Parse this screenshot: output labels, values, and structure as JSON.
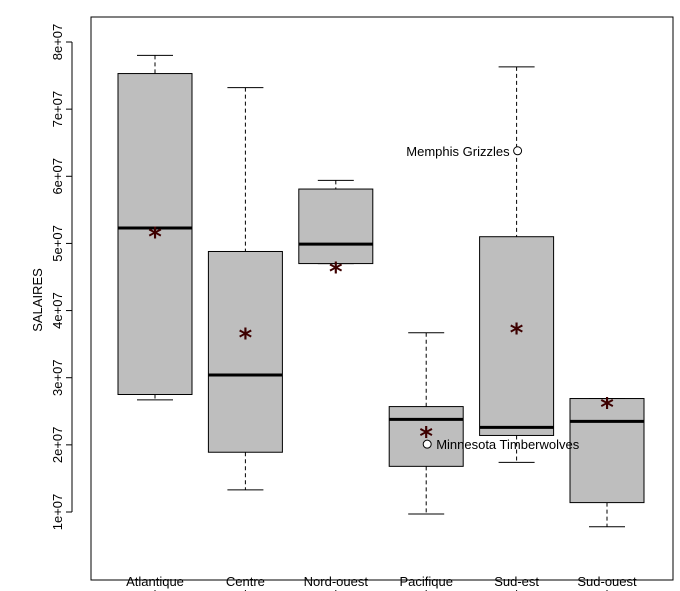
{
  "chart_data": {
    "type": "boxplot",
    "categories": [
      "Atlantique",
      "Centre",
      "Nord-ouest",
      "Pacifique",
      "Sud-est",
      "Sud-ouest"
    ],
    "ylabel": "SALAIRES",
    "xlabel": "",
    "ylim": [
      5000000,
      85500000
    ],
    "y_ticks": [
      10000000,
      20000000,
      30000000,
      40000000,
      50000000,
      60000000,
      70000000,
      80000000
    ],
    "y_tick_labels": [
      "1e+07",
      "2e+07",
      "3e+07",
      "4e+07",
      "5e+07",
      "6e+07",
      "7e+07",
      "8e+07"
    ],
    "boxes": [
      {
        "category": "Atlantique",
        "whisker_low": 26700000,
        "q1": 27500000,
        "median": 52300000,
        "q3": 75300000,
        "whisker_high": 78000000,
        "mean": 51800000
      },
      {
        "category": "Centre",
        "whisker_low": 13300000,
        "q1": 18900000,
        "median": 30400000,
        "q3": 48800000,
        "whisker_high": 73200000,
        "mean": 36700000
      },
      {
        "category": "Nord-ouest",
        "whisker_low": 47000000,
        "q1": 47000000,
        "median": 49900000,
        "q3": 58100000,
        "whisker_high": 59400000,
        "mean": 46600000
      },
      {
        "category": "Pacifique",
        "whisker_low": 9700000,
        "q1": 16800000,
        "median": 23800000,
        "q3": 25700000,
        "whisker_high": 36700000,
        "mean": 22100000
      },
      {
        "category": "Sud-est",
        "whisker_low": 17400000,
        "q1": 21400000,
        "median": 22600000,
        "q3": 51000000,
        "whisker_high": 76300000,
        "mean": 37500000
      },
      {
        "category": "Sud-ouest",
        "whisker_low": 7800000,
        "q1": 11400000,
        "median": 23500000,
        "q3": 26900000,
        "whisker_high": 26900000,
        "mean": 26400000
      }
    ],
    "outliers": [
      {
        "category": "Pacifique",
        "value": 20100000,
        "label": "Minnesota Timberwolves"
      },
      {
        "category": "Sud-est",
        "value": 63800000,
        "label": "Memphis Grizzles"
      }
    ],
    "box_fill": "#bebebe",
    "mean_color": "#3d0000",
    "grid": false,
    "legend": "none"
  }
}
